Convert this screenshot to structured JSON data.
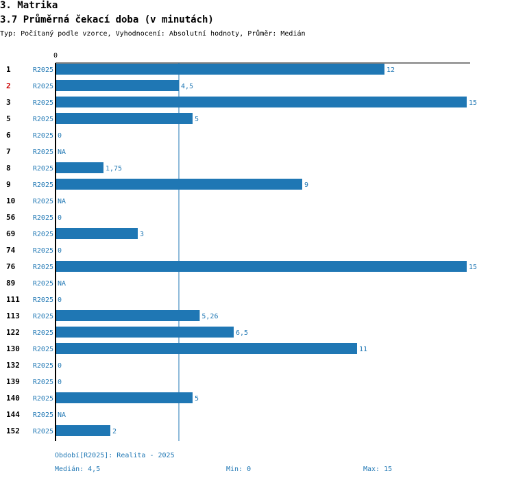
{
  "heading": "3. Matrika",
  "subheading": "3.7 Průměrná čekací doba (v minutách)",
  "meta": "Typ: Počítaný podle vzorce, Vyhodnocení: Absolutní hodnoty, Průměr: Medián",
  "colors": {
    "bar": "#1f77b4",
    "highlight": "#cc0000",
    "text": "#000000"
  },
  "chart_data": {
    "type": "bar",
    "orientation": "horizontal",
    "series_label": "R2025",
    "axis_origin_label": "0",
    "xlim": [
      0,
      15
    ],
    "median": 4.5,
    "categories": [
      {
        "id": "1",
        "value": 12,
        "label": "12",
        "highlight": false
      },
      {
        "id": "2",
        "value": 4.5,
        "label": "4,5",
        "highlight": true
      },
      {
        "id": "3",
        "value": 15,
        "label": "15",
        "highlight": false
      },
      {
        "id": "5",
        "value": 5,
        "label": "5",
        "highlight": false
      },
      {
        "id": "6",
        "value": 0,
        "label": "0",
        "highlight": false
      },
      {
        "id": "7",
        "value": null,
        "label": "NA",
        "highlight": false
      },
      {
        "id": "8",
        "value": 1.75,
        "label": "1,75",
        "highlight": false
      },
      {
        "id": "9",
        "value": 9,
        "label": "9",
        "highlight": false
      },
      {
        "id": "10",
        "value": null,
        "label": "NA",
        "highlight": false
      },
      {
        "id": "56",
        "value": 0,
        "label": "0",
        "highlight": false
      },
      {
        "id": "69",
        "value": 3,
        "label": "3",
        "highlight": false
      },
      {
        "id": "74",
        "value": 0,
        "label": "0",
        "highlight": false
      },
      {
        "id": "76",
        "value": 15,
        "label": "15",
        "highlight": false
      },
      {
        "id": "89",
        "value": null,
        "label": "NA",
        "highlight": false
      },
      {
        "id": "111",
        "value": 0,
        "label": "0",
        "highlight": false
      },
      {
        "id": "113",
        "value": 5.26,
        "label": "5,26",
        "highlight": false
      },
      {
        "id": "122",
        "value": 6.5,
        "label": "6,5",
        "highlight": false
      },
      {
        "id": "130",
        "value": 11,
        "label": "11",
        "highlight": false
      },
      {
        "id": "132",
        "value": 0,
        "label": "0",
        "highlight": false
      },
      {
        "id": "139",
        "value": 0,
        "label": "0",
        "highlight": false
      },
      {
        "id": "140",
        "value": 5,
        "label": "5",
        "highlight": false
      },
      {
        "id": "144",
        "value": null,
        "label": "NA",
        "highlight": false
      },
      {
        "id": "152",
        "value": 2,
        "label": "2",
        "highlight": false
      }
    ]
  },
  "footer": {
    "period": "Období[R2025]: Realita - 2025",
    "median": "Medián: 4,5",
    "min": "Min: 0",
    "max": "Max: 15"
  }
}
